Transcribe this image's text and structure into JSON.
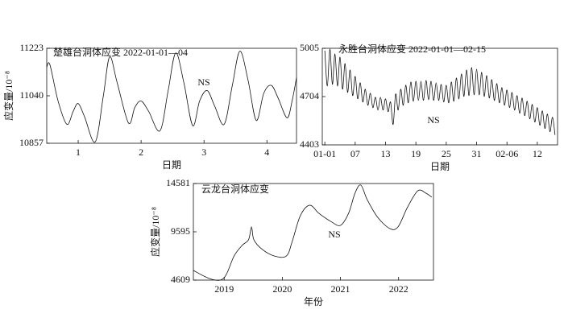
{
  "chart_data": [
    {
      "type": "line",
      "title": "楚雄台洞体应变 2022-01-01—04",
      "ylabel": "应变量/10⁻⁸",
      "xlabel": "日期",
      "annotation": "NS",
      "color": "#111111",
      "xlim": [
        0.5,
        4.47
      ],
      "xticks": [
        1,
        2,
        3,
        4
      ],
      "ylim": [
        10857,
        11223
      ],
      "yticks": [
        10857,
        11040,
        11223
      ],
      "x": [
        0.5,
        0.55,
        0.68,
        0.82,
        0.92,
        1.0,
        1.1,
        1.27,
        1.4,
        1.5,
        1.62,
        1.8,
        1.9,
        2.0,
        2.12,
        2.3,
        2.43,
        2.55,
        2.68,
        2.82,
        2.93,
        3.05,
        3.17,
        3.32,
        3.45,
        3.57,
        3.7,
        3.83,
        3.95,
        4.07,
        4.18,
        4.32,
        4.4,
        4.47
      ],
      "values": [
        11150,
        11160,
        11020,
        10930,
        10980,
        11010,
        10960,
        10862,
        11040,
        11190,
        11090,
        10935,
        10995,
        11020,
        10980,
        10905,
        11060,
        11205,
        11090,
        10925,
        11020,
        11060,
        11000,
        10930,
        11080,
        11212,
        11100,
        10945,
        11050,
        11080,
        11030,
        10955,
        11020,
        11110
      ]
    },
    {
      "type": "line",
      "title": "永胜台洞体应变 2022-01-01—02-15",
      "xlabel": "日期",
      "annotation": "NS",
      "color": "#111111",
      "xlim": [
        -0.5,
        46
      ],
      "xticks": [
        {
          "value": 0,
          "label": "01-01"
        },
        {
          "value": 6,
          "label": "07"
        },
        {
          "value": 12,
          "label": "13"
        },
        {
          "value": 18,
          "label": "19"
        },
        {
          "value": 24,
          "label": "25"
        },
        {
          "value": 30,
          "label": "31"
        },
        {
          "value": 36,
          "label": "02-06"
        },
        {
          "value": 42,
          "label": "12"
        }
      ],
      "ylim": [
        4403,
        5005
      ],
      "yticks": [
        4403,
        4704,
        5005
      ],
      "x": [
        0,
        0.5,
        1,
        1.5,
        2,
        2.5,
        3,
        3.5,
        4,
        4.5,
        5,
        5.5,
        6,
        6.5,
        7,
        7.5,
        8,
        8.5,
        9,
        9.5,
        10,
        10.5,
        11,
        11.5,
        12,
        12.5,
        13,
        13.5,
        14,
        14.5,
        15,
        15.5,
        16,
        16.5,
        17,
        17.5,
        18,
        18.5,
        19,
        19.5,
        20,
        20.5,
        21,
        21.5,
        22,
        22.5,
        23,
        23.5,
        24,
        24.5,
        25,
        25.5,
        26,
        26.5,
        27,
        27.5,
        28,
        28.5,
        29,
        29.5,
        30,
        30.5,
        31,
        31.5,
        32,
        32.5,
        33,
        33.5,
        34,
        34.5,
        35,
        35.5,
        36,
        36.5,
        37,
        37.5,
        38,
        38.5,
        39,
        39.5,
        40,
        40.5,
        41,
        41.5,
        42,
        42.5,
        43,
        43.5,
        44,
        44.5,
        45,
        45.5
      ],
      "values": [
        4990,
        4770,
        5000,
        4780,
        4970,
        4770,
        4950,
        4750,
        4910,
        4730,
        4870,
        4710,
        4830,
        4690,
        4790,
        4670,
        4750,
        4650,
        4725,
        4635,
        4700,
        4620,
        4700,
        4620,
        4690,
        4610,
        4670,
        4530,
        4720,
        4620,
        4750,
        4650,
        4775,
        4665,
        4795,
        4675,
        4800,
        4680,
        4800,
        4680,
        4805,
        4685,
        4800,
        4680,
        4790,
        4680,
        4780,
        4670,
        4775,
        4665,
        4795,
        4675,
        4820,
        4690,
        4845,
        4705,
        4870,
        4710,
        4885,
        4715,
        4875,
        4715,
        4855,
        4705,
        4835,
        4695,
        4810,
        4680,
        4785,
        4665,
        4760,
        4650,
        4745,
        4635,
        4730,
        4620,
        4710,
        4600,
        4695,
        4585,
        4675,
        4565,
        4655,
        4545,
        4635,
        4525,
        4615,
        4505,
        4595,
        4485,
        4575,
        4465
      ]
    },
    {
      "type": "line",
      "title": "云龙台洞体应变",
      "ylabel": "应变量/10⁻⁸",
      "xlabel": "年份",
      "annotation": "NS",
      "color": "#111111",
      "xlim": [
        2018.47,
        2022.6
      ],
      "xticks": [
        2019,
        2020,
        2021,
        2022
      ],
      "ylim": [
        4609,
        14581
      ],
      "yticks": [
        4609,
        9595,
        14581
      ],
      "x": [
        2018.47,
        2018.78,
        2019.0,
        2019.17,
        2019.31,
        2019.42,
        2019.47,
        2019.51,
        2019.65,
        2019.86,
        2020.07,
        2020.17,
        2020.31,
        2020.47,
        2020.63,
        2020.83,
        2021.0,
        2021.14,
        2021.25,
        2021.35,
        2021.46,
        2021.64,
        2021.85,
        2021.99,
        2022.15,
        2022.33,
        2022.47,
        2022.57
      ],
      "values": [
        5606,
        4700,
        4860,
        7100,
        8200,
        8790,
        10100,
        8790,
        7800,
        7100,
        7100,
        8600,
        11260,
        12340,
        11500,
        10680,
        10260,
        11510,
        13580,
        14420,
        12920,
        11090,
        9930,
        10100,
        12090,
        13830,
        13580,
        13170
      ]
    }
  ]
}
